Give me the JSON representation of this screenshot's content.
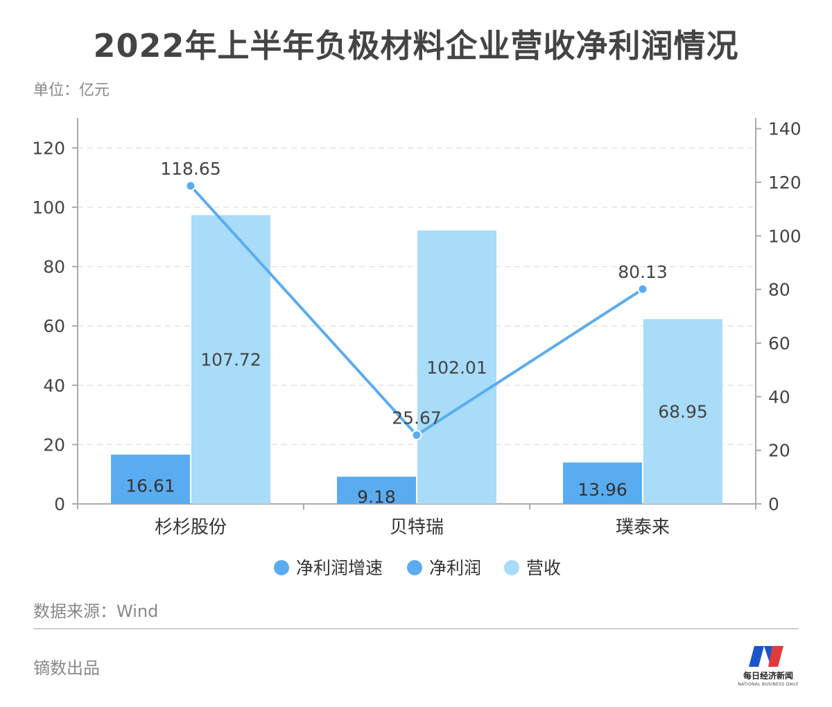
{
  "header": {
    "title": "2022年上半年负极材料企业营收净利润情况",
    "unit": "单位：亿元"
  },
  "footer": {
    "source": "数据来源：Wind",
    "credit": "镝数出品"
  },
  "logo": {
    "text": "每日经济新闻",
    "sub": "NATIONAL BUSINESS DAILY"
  },
  "colors": {
    "growth_line": "#5aacf0",
    "net_profit_bar": "#5aacf0",
    "revenue_bar": "#a8dcf8",
    "axis": "#aaaaaa",
    "grid": "#e3e3e3",
    "logo_blue": "#1a56c8",
    "logo_red": "#e23a3a"
  },
  "chart_data": {
    "type": "bar",
    "categories": [
      "杉杉股份",
      "贝特瑞",
      "璞泰来"
    ],
    "series": [
      {
        "name": "净利润增速",
        "type": "line",
        "axis": "right",
        "values": [
          118.65,
          25.67,
          80.13
        ]
      },
      {
        "name": "净利润",
        "type": "bar",
        "axis": "left",
        "values": [
          16.61,
          9.18,
          13.96
        ]
      },
      {
        "name": "营收",
        "type": "bar",
        "axis": "right",
        "values": [
          107.72,
          102.01,
          68.95
        ]
      }
    ],
    "y_left": {
      "ylim": [
        0,
        120
      ],
      "ticks": [
        0,
        20,
        40,
        60,
        80,
        100,
        120
      ]
    },
    "y_right": {
      "ylim": [
        0,
        140
      ],
      "ticks": [
        0,
        20,
        40,
        60,
        80,
        100,
        120,
        140
      ]
    },
    "grid": true,
    "legend_position": "bottom"
  }
}
